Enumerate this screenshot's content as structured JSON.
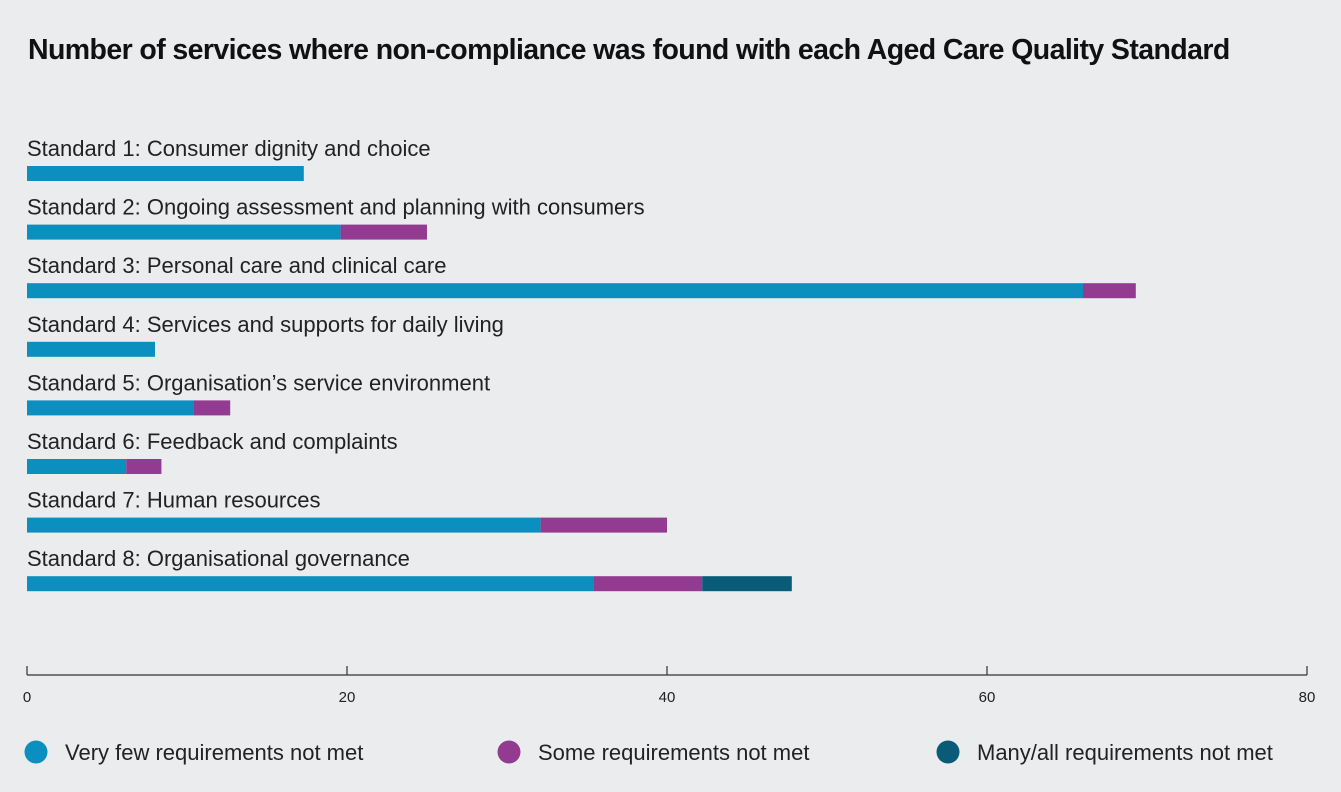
{
  "chart_data": {
    "type": "bar",
    "orientation": "horizontal",
    "stacked": true,
    "title": "Number of services where non-compliance was found with each Aged Care Quality Standard",
    "xlabel": "",
    "ylabel": "",
    "xlim": [
      0,
      80
    ],
    "x_ticks": [
      0,
      20,
      40,
      60,
      80
    ],
    "grid": false,
    "legend_position": "bottom",
    "categories": [
      "Standard 1: Consumer dignity and choice",
      "Standard 2: Ongoing assessment and planning with consumers",
      "Standard 3: Personal care and clinical care",
      "Standard 4: Services and supports for daily living",
      "Standard 5: Organisation’s service environment",
      "Standard 6: Feedback and complaints",
      "Standard 7: Human resources",
      "Standard 8: Organisational governance"
    ],
    "series": [
      {
        "name": "Very few requirements not met",
        "color": "#0a8fbf",
        "values": [
          17.3,
          19.6,
          66.0,
          8.0,
          10.4,
          6.2,
          32.1,
          35.4
        ]
      },
      {
        "name": "Some requirements not met",
        "color": "#923b91",
        "values": [
          0,
          5.4,
          3.3,
          0,
          2.3,
          2.2,
          7.9,
          6.8
        ]
      },
      {
        "name": "Many/all requirements not met",
        "color": "#0a5b78",
        "values": [
          0,
          0,
          0,
          0,
          0,
          0,
          0,
          5.6
        ]
      }
    ]
  }
}
